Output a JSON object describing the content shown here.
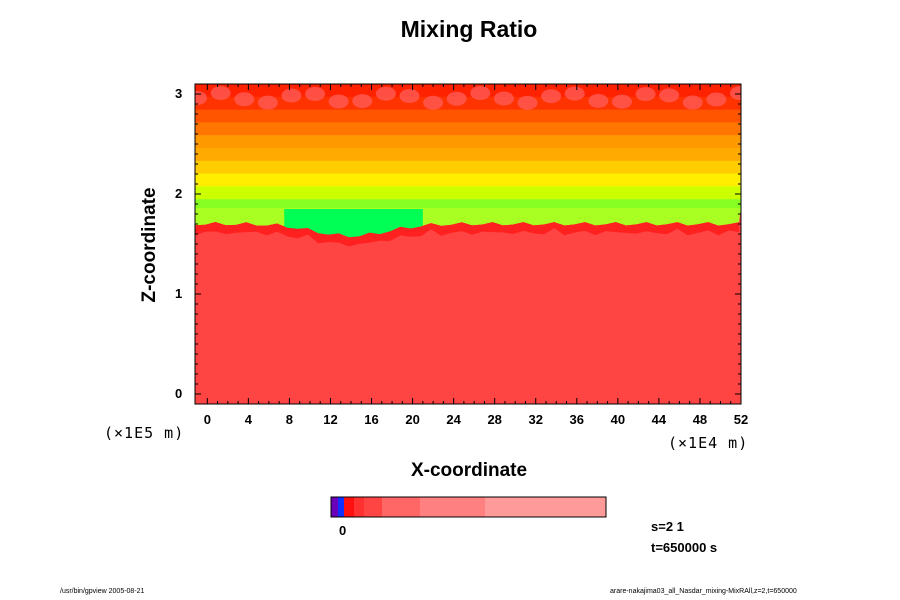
{
  "chart_data": {
    "type": "heatmap",
    "title": "Mixing Ratio",
    "xlabel": "X-coordinate",
    "ylabel": "Z-coordinate",
    "x_unit": "(×1E4 m)",
    "y_unit": "(×1E5 m)",
    "xlim": [
      -1.2,
      52
    ],
    "ylim": [
      -0.1,
      3.1
    ],
    "xticks": [
      "0",
      "4",
      "8",
      "12",
      "16",
      "20",
      "24",
      "28",
      "32",
      "36",
      "40",
      "44",
      "48",
      "52"
    ],
    "yticks": [
      "0",
      "1",
      "2",
      "3"
    ],
    "colors": {
      "bulk": "#ff4444",
      "interface": "#ff2020",
      "moist_layer": "#00ff55",
      "upper_bands": [
        "#88ff22",
        "#ccff00",
        "#ffee00",
        "#ffcc00",
        "#ffaa00",
        "#ff9900",
        "#ff7700",
        "#ff5500",
        "#ff3300",
        "#ff2200"
      ],
      "top_cells": "#ff5a55"
    },
    "colorbar": {
      "label_zero": "0",
      "colors": [
        "#6a00b8",
        "#1030ff",
        "#ff1010",
        "#ff3030",
        "#ff4444",
        "#ff6666",
        "#ff8080",
        "#ff9a9a"
      ]
    }
  },
  "info": {
    "s": "s=2 1",
    "t": "t=650000 s"
  },
  "footer": {
    "left": "/usr/bin/gpview 2005-08-21",
    "right": "arare-nakajima03_all_Nasdar_mixing-MixRAll,z=2,t=650000"
  }
}
